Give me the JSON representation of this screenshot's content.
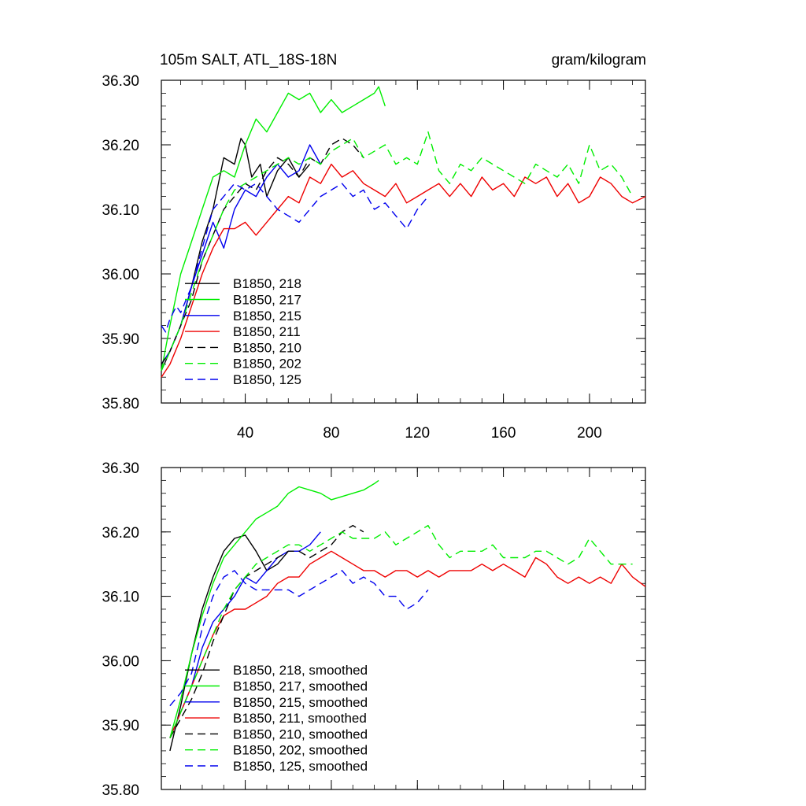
{
  "chart_data": [
    {
      "type": "line",
      "panel": "top",
      "title": "105m SALT, ATL_18S-18N",
      "units": "gram/kilogram",
      "xlim": [
        1,
        226
      ],
      "ylim": [
        35.8,
        36.3
      ],
      "xticks": [
        40,
        80,
        120,
        160,
        200
      ],
      "xtick_labels": [
        "40",
        "80",
        "120",
        "160",
        "200"
      ],
      "yticks": [
        35.8,
        35.9,
        36.0,
        36.1,
        36.2,
        36.3
      ],
      "ytick_labels": [
        "35.80",
        "35.90",
        "36.00",
        "36.10",
        "36.20",
        "36.30"
      ],
      "legend_position": "bottom-left",
      "series": [
        {
          "name": "B1850, 218",
          "color": "#000000",
          "dash": "solid",
          "x": [
            1,
            5,
            10,
            15,
            20,
            25,
            30,
            35,
            38,
            40,
            43,
            47,
            50,
            55,
            60,
            65,
            70
          ],
          "y": [
            35.85,
            35.88,
            35.92,
            35.98,
            36.05,
            36.1,
            36.18,
            36.17,
            36.21,
            36.2,
            36.15,
            36.17,
            36.12,
            36.16,
            36.18,
            36.15,
            36.17
          ]
        },
        {
          "name": "B1850, 217",
          "color": "#00ee00",
          "dash": "solid",
          "x": [
            1,
            5,
            10,
            15,
            20,
            25,
            30,
            35,
            40,
            45,
            50,
            55,
            60,
            65,
            70,
            75,
            80,
            85,
            90,
            95,
            100,
            102,
            105
          ],
          "y": [
            35.85,
            35.92,
            36.0,
            36.05,
            36.1,
            36.15,
            36.16,
            36.15,
            36.2,
            36.24,
            36.22,
            36.25,
            36.28,
            36.27,
            36.28,
            36.25,
            36.27,
            36.25,
            36.26,
            36.27,
            36.28,
            36.29,
            36.26
          ]
        },
        {
          "name": "B1850, 215",
          "color": "#0000ee",
          "dash": "solid",
          "x": [
            1,
            5,
            10,
            15,
            20,
            25,
            30,
            35,
            40,
            45,
            50,
            55,
            60,
            65,
            70,
            75
          ],
          "y": [
            35.86,
            35.88,
            35.92,
            35.98,
            36.03,
            36.08,
            36.04,
            36.1,
            36.13,
            36.12,
            36.15,
            36.17,
            36.15,
            36.16,
            36.2,
            36.17
          ]
        },
        {
          "name": "B1850, 211",
          "color": "#ee0000",
          "dash": "solid",
          "x": [
            1,
            5,
            10,
            15,
            20,
            25,
            30,
            35,
            40,
            45,
            50,
            55,
            60,
            65,
            70,
            75,
            80,
            85,
            90,
            95,
            100,
            105,
            110,
            115,
            120,
            125,
            130,
            135,
            140,
            145,
            150,
            155,
            160,
            165,
            170,
            175,
            180,
            185,
            190,
            195,
            200,
            205,
            210,
            215,
            220,
            226
          ],
          "y": [
            35.84,
            35.86,
            35.9,
            35.95,
            36.0,
            36.04,
            36.07,
            36.07,
            36.08,
            36.06,
            36.08,
            36.1,
            36.12,
            36.11,
            36.15,
            36.14,
            36.17,
            36.15,
            36.16,
            36.14,
            36.13,
            36.12,
            36.14,
            36.11,
            36.12,
            36.13,
            36.14,
            36.12,
            36.14,
            36.12,
            36.15,
            36.13,
            36.14,
            36.12,
            36.15,
            36.14,
            36.15,
            36.12,
            36.14,
            36.11,
            36.12,
            36.15,
            36.14,
            36.12,
            36.11,
            36.12
          ]
        },
        {
          "name": "B1850, 210",
          "color": "#000000",
          "dash": "dashed",
          "x": [
            1,
            5,
            10,
            15,
            20,
            25,
            30,
            35,
            40,
            45,
            50,
            55,
            60,
            65,
            70,
            75,
            80,
            85,
            90,
            95
          ],
          "y": [
            35.86,
            35.88,
            35.92,
            35.96,
            36.02,
            36.06,
            36.1,
            36.12,
            36.14,
            36.13,
            36.16,
            36.18,
            36.17,
            36.15,
            36.18,
            36.17,
            36.2,
            36.21,
            36.2,
            36.18
          ]
        },
        {
          "name": "B1850, 202",
          "color": "#00ee00",
          "dash": "dashed",
          "x": [
            1,
            5,
            10,
            15,
            20,
            25,
            30,
            35,
            40,
            45,
            50,
            55,
            60,
            65,
            70,
            75,
            80,
            85,
            90,
            95,
            100,
            105,
            110,
            115,
            120,
            125,
            130,
            135,
            140,
            145,
            150,
            155,
            160,
            165,
            170,
            175,
            180,
            185,
            190,
            195,
            200,
            205,
            210,
            215,
            220
          ],
          "y": [
            35.85,
            35.88,
            35.92,
            35.97,
            36.02,
            36.06,
            36.1,
            36.13,
            36.14,
            36.15,
            36.16,
            36.17,
            36.18,
            36.17,
            36.18,
            36.17,
            36.19,
            36.2,
            36.21,
            36.18,
            36.19,
            36.2,
            36.17,
            36.18,
            36.17,
            36.22,
            36.16,
            36.14,
            36.17,
            36.16,
            36.18,
            36.17,
            36.16,
            36.15,
            36.14,
            36.17,
            36.16,
            36.15,
            36.17,
            36.14,
            36.2,
            36.16,
            36.17,
            36.15,
            36.12
          ]
        },
        {
          "name": "B1850, 125",
          "color": "#0000ee",
          "dash": "dashed",
          "x": [
            1,
            3,
            5,
            8,
            10,
            15,
            20,
            25,
            30,
            35,
            40,
            45,
            50,
            55,
            60,
            65,
            70,
            75,
            80,
            85,
            90,
            95,
            100,
            105,
            110,
            115,
            120,
            125
          ],
          "y": [
            35.92,
            35.91,
            35.93,
            35.95,
            35.94,
            35.98,
            36.04,
            36.1,
            36.12,
            36.14,
            36.13,
            36.14,
            36.12,
            36.1,
            36.09,
            36.08,
            36.1,
            36.12,
            36.13,
            36.14,
            36.12,
            36.13,
            36.1,
            36.11,
            36.09,
            36.07,
            36.1,
            36.12
          ]
        }
      ]
    },
    {
      "type": "line",
      "panel": "bottom",
      "title": "",
      "xlim": [
        1,
        226
      ],
      "ylim": [
        35.8,
        36.3
      ],
      "xticks": [
        40,
        80,
        120,
        160,
        200
      ],
      "yticks": [
        35.8,
        35.9,
        36.0,
        36.1,
        36.2,
        36.3
      ],
      "ytick_labels": [
        "35.80",
        "35.90",
        "36.00",
        "36.10",
        "36.20",
        "36.30"
      ],
      "legend_position": "bottom-left",
      "series": [
        {
          "name": "B1850, 218, smoothed",
          "color": "#000000",
          "dash": "solid",
          "x": [
            5,
            10,
            15,
            20,
            25,
            30,
            35,
            40,
            45,
            50,
            55,
            60,
            65
          ],
          "y": [
            35.86,
            35.93,
            36.01,
            36.08,
            36.13,
            36.17,
            36.19,
            36.195,
            36.17,
            36.14,
            36.15,
            36.17,
            36.17
          ]
        },
        {
          "name": "B1850, 217, smoothed",
          "color": "#00ee00",
          "dash": "solid",
          "x": [
            5,
            10,
            15,
            20,
            25,
            30,
            35,
            40,
            45,
            50,
            55,
            60,
            65,
            70,
            75,
            80,
            85,
            90,
            95,
            100,
            102
          ],
          "y": [
            35.88,
            35.94,
            36.01,
            36.07,
            36.12,
            36.16,
            36.18,
            36.2,
            36.22,
            36.23,
            36.24,
            36.26,
            36.27,
            36.265,
            36.26,
            36.25,
            36.255,
            36.26,
            36.265,
            36.275,
            36.28
          ]
        },
        {
          "name": "B1850, 215, smoothed",
          "color": "#0000ee",
          "dash": "solid",
          "x": [
            5,
            10,
            15,
            20,
            25,
            30,
            35,
            40,
            45,
            50,
            55,
            60,
            65,
            70,
            75
          ],
          "y": [
            35.88,
            35.92,
            35.96,
            36.02,
            36.06,
            36.08,
            36.1,
            36.13,
            36.12,
            36.14,
            36.16,
            36.17,
            36.17,
            36.18,
            36.2
          ]
        },
        {
          "name": "B1850, 211, smoothed",
          "color": "#ee0000",
          "dash": "solid",
          "x": [
            5,
            10,
            15,
            20,
            25,
            30,
            35,
            40,
            45,
            50,
            55,
            60,
            65,
            70,
            75,
            80,
            85,
            90,
            95,
            100,
            105,
            110,
            115,
            120,
            125,
            130,
            135,
            140,
            145,
            150,
            155,
            160,
            165,
            170,
            175,
            180,
            185,
            190,
            195,
            200,
            205,
            210,
            215,
            220,
            226
          ],
          "y": [
            35.88,
            35.92,
            35.96,
            36.0,
            36.04,
            36.07,
            36.08,
            36.08,
            36.09,
            36.1,
            36.12,
            36.13,
            36.13,
            36.15,
            36.16,
            36.17,
            36.16,
            36.15,
            36.14,
            36.14,
            36.13,
            36.14,
            36.14,
            36.13,
            36.14,
            36.13,
            36.14,
            36.14,
            36.14,
            36.15,
            36.14,
            36.15,
            36.14,
            36.13,
            36.16,
            36.15,
            36.13,
            36.12,
            36.13,
            36.12,
            36.13,
            36.12,
            36.15,
            36.13,
            36.115
          ]
        },
        {
          "name": "B1850, 210, smoothed",
          "color": "#000000",
          "dash": "dashed",
          "x": [
            5,
            10,
            15,
            20,
            25,
            30,
            35,
            40,
            45,
            50,
            55,
            60,
            65,
            70,
            75,
            80,
            85,
            90,
            95
          ],
          "y": [
            35.88,
            35.91,
            35.94,
            35.98,
            36.03,
            36.07,
            36.11,
            36.13,
            36.14,
            36.15,
            36.16,
            36.17,
            36.17,
            36.16,
            36.17,
            36.18,
            36.2,
            36.21,
            36.2
          ]
        },
        {
          "name": "B1850, 202, smoothed",
          "color": "#00ee00",
          "dash": "dashed",
          "x": [
            5,
            10,
            15,
            20,
            25,
            30,
            35,
            40,
            45,
            50,
            55,
            60,
            65,
            70,
            75,
            80,
            85,
            90,
            95,
            100,
            105,
            110,
            115,
            120,
            125,
            130,
            135,
            140,
            145,
            150,
            155,
            160,
            165,
            170,
            175,
            180,
            185,
            190,
            195,
            200,
            205,
            210,
            215,
            220
          ],
          "y": [
            35.88,
            35.92,
            35.96,
            36.0,
            36.04,
            36.08,
            36.11,
            36.13,
            36.15,
            36.16,
            36.17,
            36.18,
            36.18,
            36.17,
            36.18,
            36.19,
            36.2,
            36.19,
            36.19,
            36.19,
            36.2,
            36.18,
            36.19,
            36.2,
            36.21,
            36.18,
            36.16,
            36.17,
            36.17,
            36.17,
            36.18,
            36.16,
            36.16,
            36.16,
            36.17,
            36.17,
            36.16,
            36.15,
            36.16,
            36.19,
            36.17,
            36.15,
            36.15,
            36.15
          ]
        },
        {
          "name": "B1850, 125, smoothed",
          "color": "#0000ee",
          "dash": "dashed",
          "x": [
            5,
            10,
            15,
            20,
            25,
            30,
            35,
            40,
            45,
            50,
            55,
            60,
            65,
            70,
            75,
            80,
            85,
            90,
            95,
            100,
            105,
            110,
            115,
            120,
            125
          ],
          "y": [
            35.93,
            35.95,
            35.98,
            36.05,
            36.1,
            36.13,
            36.14,
            36.12,
            36.11,
            36.11,
            36.11,
            36.11,
            36.1,
            36.11,
            36.12,
            36.13,
            36.14,
            36.12,
            36.13,
            36.12,
            36.1,
            36.1,
            36.08,
            36.09,
            36.11
          ]
        }
      ]
    }
  ]
}
